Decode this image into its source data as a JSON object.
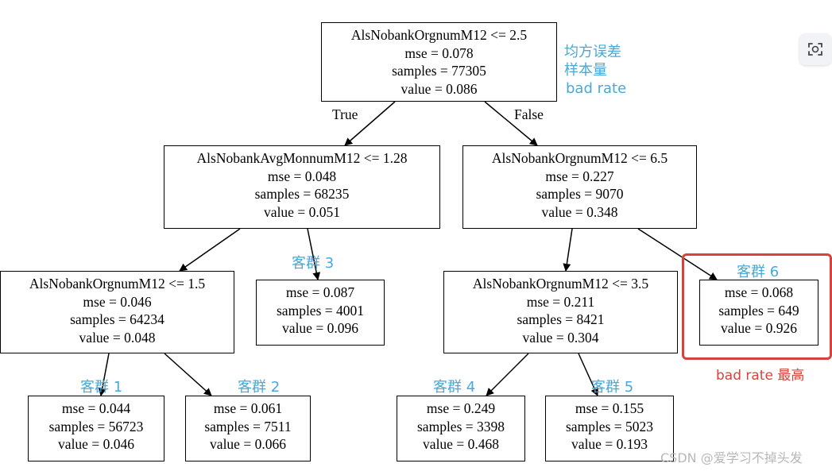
{
  "nodes": {
    "root": {
      "l1": "AlsNobankOrgnumM12 <= 2.5",
      "l2": "mse = 0.078",
      "l3": "samples = 77305",
      "l4": "value = 0.086"
    },
    "left": {
      "l1": "AlsNobankAvgMonnumM12 <= 1.28",
      "l2": "mse = 0.048",
      "l3": "samples = 68235",
      "l4": "value = 0.051"
    },
    "right": {
      "l1": "AlsNobankOrgnumM12 <= 6.5",
      "l2": "mse = 0.227",
      "l3": "samples = 9070",
      "l4": "value = 0.348"
    },
    "ll": {
      "l1": "AlsNobankOrgnumM12 <= 1.5",
      "l2": "mse = 0.046",
      "l3": "samples = 64234",
      "l4": "value = 0.048"
    },
    "lr": {
      "l1": "mse = 0.087",
      "l2": "samples = 4001",
      "l3": "value = 0.096"
    },
    "rl": {
      "l1": "AlsNobankOrgnumM12 <= 3.5",
      "l2": "mse = 0.211",
      "l3": "samples = 8421",
      "l4": "value = 0.304"
    },
    "rr": {
      "l1": "mse = 0.068",
      "l2": "samples = 649",
      "l3": "value = 0.926"
    },
    "c1": {
      "l1": "mse = 0.044",
      "l2": "samples = 56723",
      "l3": "value = 0.046"
    },
    "c2": {
      "l1": "mse = 0.061",
      "l2": "samples = 7511",
      "l3": "value = 0.066"
    },
    "c4": {
      "l1": "mse = 0.249",
      "l2": "samples = 3398",
      "l3": "value = 0.468"
    },
    "c5": {
      "l1": "mse = 0.155",
      "l2": "samples = 5023",
      "l3": "value = 0.193"
    }
  },
  "edge_labels": {
    "true": "True",
    "false": "False"
  },
  "annotations": {
    "mse": "均方误差",
    "samples": "样本量",
    "value": "bad rate",
    "cluster1": "客群 1",
    "cluster2": "客群 2",
    "cluster3": "客群 3",
    "cluster4": "客群 4",
    "cluster5": "客群 5",
    "cluster6": "客群 6",
    "highest": "bad rate 最高"
  },
  "watermark": "CSDN @爱学习不掉头发",
  "colors": {
    "annotation": "#4aa8d8",
    "highlight": "#d9413b"
  }
}
